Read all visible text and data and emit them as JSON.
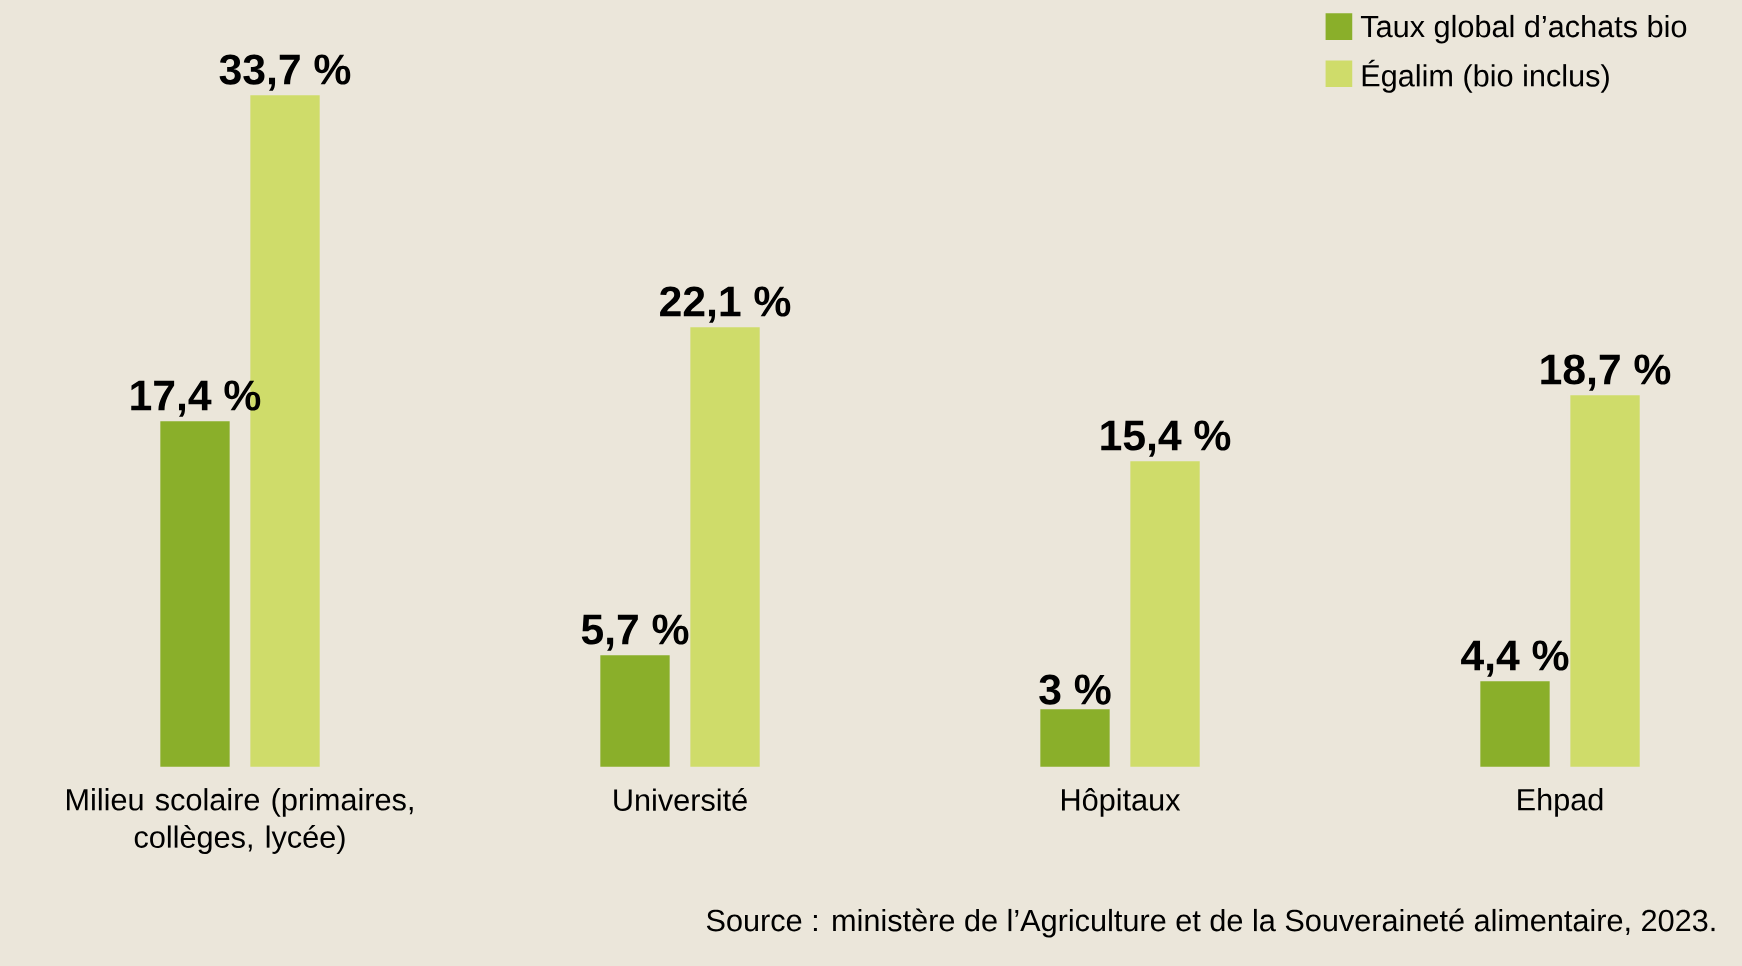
{
  "chart_data": {
    "type": "bar",
    "categories": [
      "Milieu scolaire (primaires, collèges, lycée)",
      "Université",
      "Hôpitaux",
      "Ehpad"
    ],
    "series": [
      {
        "name": "Taux global d’achats bio",
        "color": "#8aaf2a",
        "values": [
          17.4,
          5.7,
          3,
          4.4
        ],
        "value_labels": [
          "17,4 %",
          "5,7 %",
          "3 %",
          "4,4 %"
        ]
      },
      {
        "name": "Égalim (bio inclus)",
        "color": "#cfdc6a",
        "values": [
          33.7,
          22.1,
          15.4,
          18.7
        ],
        "value_labels": [
          "33,7 %",
          "22,1 %",
          "15,4 %",
          "18,7 %"
        ]
      }
    ],
    "legend": "top right",
    "annotations": [
      "Source : ministère de l’Agriculture et de la Souveraineté alimentaire, 2023."
    ]
  }
}
